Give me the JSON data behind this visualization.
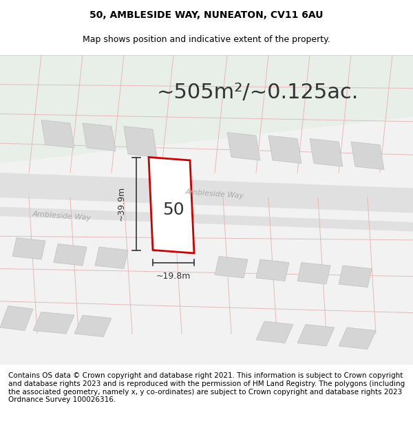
{
  "title_line1": "50, AMBLESIDE WAY, NUNEATON, CV11 6AU",
  "title_line2": "Map shows position and indicative extent of the property.",
  "area_text": "~505m²/~0.125ac.",
  "label_50": "50",
  "dim_width": "~19.8m",
  "dim_height": "~39.9m",
  "road_name_1": "Ambleside Way",
  "road_name_2": "Ambleside Way",
  "footer_text": "Contains OS data © Crown copyright and database right 2021. This information is subject to Crown copyright and database rights 2023 and is reproduced with the permission of HM Land Registry. The polygons (including the associated geometry, namely x, y co-ordinates) are subject to Crown copyright and database rights 2023 Ordnance Survey 100026316.",
  "bg_color": "#f0f4f0",
  "map_bg": "#f5f5f5",
  "road_fill": "#e8e8e8",
  "plot_outline_color": "#cc0000",
  "plot_bg": "#ffffff",
  "grid_line_color": "#e8b8b8",
  "building_fill": "#d8d8d8",
  "building_outline": "#c0c0c0",
  "title_fontsize": 10,
  "subtitle_fontsize": 9,
  "area_fontsize": 22,
  "label_fontsize": 18,
  "dim_fontsize": 9,
  "footer_fontsize": 7.5
}
